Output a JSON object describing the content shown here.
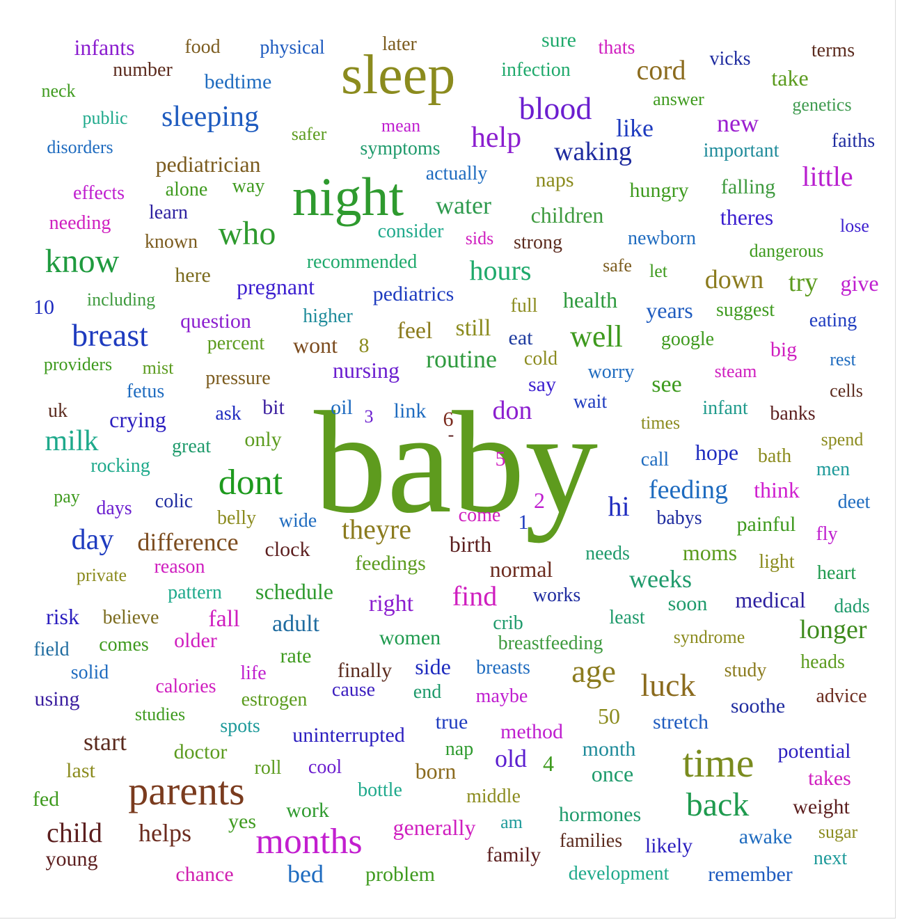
{
  "words": [
    {
      "text": "baby",
      "weight": 100,
      "color": "#5e9b1e"
    },
    {
      "text": "night",
      "weight": 50,
      "color": "#2e9a2e"
    },
    {
      "text": "sleep",
      "weight": 52,
      "color": "#8b8b1e"
    },
    {
      "text": "parents",
      "weight": 40,
      "color": "#7a3b1e"
    },
    {
      "text": "time",
      "weight": 40,
      "color": "#7a8b1e"
    },
    {
      "text": "months",
      "weight": 35,
      "color": "#c21ecf"
    },
    {
      "text": "dont",
      "weight": 35,
      "color": "#1e9a1e"
    },
    {
      "text": "back",
      "weight": 33,
      "color": "#1e9a4e"
    },
    {
      "text": "know",
      "weight": 33,
      "color": "#1e9a3e"
    },
    {
      "text": "who",
      "weight": 33,
      "color": "#2e9a2e"
    },
    {
      "text": "age",
      "weight": 32,
      "color": "#8b7b1e"
    },
    {
      "text": "luck",
      "weight": 32,
      "color": "#8b6b1e"
    },
    {
      "text": "breast",
      "weight": 32,
      "color": "#1e3bbf"
    },
    {
      "text": "blood",
      "weight": 31,
      "color": "#6b1ecf"
    },
    {
      "text": "well",
      "weight": 31,
      "color": "#3e9a1e"
    },
    {
      "text": "milk",
      "weight": 29,
      "color": "#1ea98b"
    },
    {
      "text": "child",
      "weight": 29,
      "color": "#5b1e1e"
    },
    {
      "text": "day",
      "weight": 29,
      "color": "#1e3bbf"
    },
    {
      "text": "help",
      "weight": 29,
      "color": "#8b1ecf"
    },
    {
      "text": "sleeping",
      "weight": 28,
      "color": "#1e5bbf"
    },
    {
      "text": "theyre",
      "weight": 27,
      "color": "#8b7b1e"
    },
    {
      "text": "hi",
      "weight": 27,
      "color": "#1e2bbf"
    },
    {
      "text": "hours",
      "weight": 27,
      "color": "#1ea96b"
    },
    {
      "text": "cord",
      "weight": 27,
      "color": "#8b6b1e"
    },
    {
      "text": "difference",
      "weight": 25,
      "color": "#7b4b1e"
    },
    {
      "text": "longer",
      "weight": 25,
      "color": "#3e8b1e"
    },
    {
      "text": "feeding",
      "weight": 25,
      "color": "#1e6bbf"
    },
    {
      "text": "waking",
      "weight": 25,
      "color": "#1e2b9f"
    },
    {
      "text": "little",
      "weight": 25,
      "color": "#b81ecf"
    },
    {
      "text": "down",
      "weight": 25,
      "color": "#8b7b1e"
    },
    {
      "text": "try",
      "weight": 25,
      "color": "#5b9b1e"
    },
    {
      "text": "routine",
      "weight": 24,
      "color": "#2e9a3e"
    },
    {
      "text": "helps",
      "weight": 24,
      "color": "#6b2b1e"
    },
    {
      "text": "water",
      "weight": 24,
      "color": "#2e9a4e"
    },
    {
      "text": "find",
      "weight": 24,
      "color": "#cf1ebf"
    },
    {
      "text": "don",
      "weight": 24,
      "color": "#8b1ecf"
    },
    {
      "text": "like",
      "weight": 23,
      "color": "#1e3bbf"
    },
    {
      "text": "bed",
      "weight": 23,
      "color": "#1e6bbf"
    },
    {
      "text": "weeks",
      "weight": 23,
      "color": "#1e9a6b"
    },
    {
      "text": "old",
      "weight": 23,
      "color": "#5b1ecf"
    },
    {
      "text": "start",
      "weight": 23,
      "color": "#5b2b1e"
    },
    {
      "text": "new",
      "weight": 23,
      "color": "#9b1ecf"
    },
    {
      "text": "pregnant",
      "weight": 21,
      "color": "#3b1ecf"
    },
    {
      "text": "pediatrician",
      "weight": 21,
      "color": "#7b5b1e"
    },
    {
      "text": "children",
      "weight": 21,
      "color": "#3e9a3e"
    },
    {
      "text": "years",
      "weight": 21,
      "color": "#1e5bbf"
    },
    {
      "text": "feel",
      "weight": 21,
      "color": "#8b7b1e"
    },
    {
      "text": "still",
      "weight": 21,
      "color": "#8b8b1e"
    },
    {
      "text": "health",
      "weight": 21,
      "color": "#2e9a3e"
    },
    {
      "text": "see",
      "weight": 21,
      "color": "#3e9a1e"
    },
    {
      "text": "give",
      "weight": 21,
      "color": "#bf1ecf"
    },
    {
      "text": "moms",
      "weight": 21,
      "color": "#5b9b1e"
    },
    {
      "text": "medical",
      "weight": 21,
      "color": "#2b1e9f"
    },
    {
      "text": "infants",
      "weight": 21,
      "color": "#8b1ecf"
    },
    {
      "text": "hope",
      "weight": 21,
      "color": "#1e2bbf"
    },
    {
      "text": "think",
      "weight": 21,
      "color": "#cf1ecf"
    },
    {
      "text": "schedule",
      "weight": 21,
      "color": "#2e9a2e"
    },
    {
      "text": "normal",
      "weight": 21,
      "color": "#6b2b1e"
    },
    {
      "text": "adult",
      "weight": 21,
      "color": "#1e6b9f"
    },
    {
      "text": "right",
      "weight": 21,
      "color": "#8b1ecf"
    },
    {
      "text": "fall",
      "weight": 21,
      "color": "#cf1ebf"
    },
    {
      "text": "crying",
      "weight": 21,
      "color": "#2b1ebf"
    },
    {
      "text": "soon",
      "weight": 20,
      "color": "#1e9a6b"
    },
    {
      "text": "women",
      "weight": 20,
      "color": "#1e9a4e"
    },
    {
      "text": "side",
      "weight": 20,
      "color": "#1e2bbf"
    },
    {
      "text": "finally",
      "weight": 20,
      "color": "#5b2b1e"
    },
    {
      "text": "young",
      "weight": 20,
      "color": "#5b1e1e"
    },
    {
      "text": "hormones",
      "weight": 20,
      "color": "#1e9a6b"
    },
    {
      "text": "potential",
      "weight": 20,
      "color": "#2b1ebf"
    },
    {
      "text": "awake",
      "weight": 20,
      "color": "#1e6bbf"
    },
    {
      "text": "likely",
      "weight": 20,
      "color": "#2b1ebf"
    },
    {
      "text": "family",
      "weight": 20,
      "color": "#5b1e1e"
    },
    {
      "text": "generally",
      "weight": 20,
      "color": "#cf1ebf"
    },
    {
      "text": "problem",
      "weight": 19,
      "color": "#3e9a1e"
    },
    {
      "text": "chance",
      "weight": 19,
      "color": "#cf1eaf"
    },
    {
      "text": "remember",
      "weight": 19,
      "color": "#1e5bbf"
    },
    {
      "text": "development",
      "weight": 19,
      "color": "#1ea98b"
    },
    {
      "text": "next",
      "weight": 19,
      "color": "#1e9a9a"
    },
    {
      "text": "sugar",
      "weight": 18,
      "color": "#8b8b1e"
    },
    {
      "text": "weight",
      "weight": 19,
      "color": "#5b1e1e"
    },
    {
      "text": "takes",
      "weight": 19,
      "color": "#cf1ebf"
    },
    {
      "text": "families",
      "weight": 18,
      "color": "#5b2b1e"
    },
    {
      "text": "middle",
      "weight": 18,
      "color": "#8b8b1e"
    },
    {
      "text": "work",
      "weight": 19,
      "color": "#2e9a2e"
    },
    {
      "text": "yes",
      "weight": 19,
      "color": "#3e9a1e"
    },
    {
      "text": "am",
      "weight": 18,
      "color": "#1e9a9a"
    },
    {
      "text": "bottle",
      "weight": 18,
      "color": "#1ea98b"
    },
    {
      "text": "born",
      "weight": 20,
      "color": "#8b6b1e"
    },
    {
      "text": "once",
      "weight": 20,
      "color": "#1e9a6b"
    },
    {
      "text": "month",
      "weight": 20,
      "color": "#1e8b9a"
    },
    {
      "text": "4",
      "weight": 20,
      "color": "#3e9a1e"
    },
    {
      "text": "nap",
      "weight": 18,
      "color": "#2e9a2e"
    },
    {
      "text": "true",
      "weight": 19,
      "color": "#1e3bbf"
    },
    {
      "text": "method",
      "weight": 19,
      "color": "#bf1ecf"
    },
    {
      "text": "stretch",
      "weight": 19,
      "color": "#1e5bbf"
    },
    {
      "text": "soothe",
      "weight": 19,
      "color": "#1e2b9f"
    },
    {
      "text": "advice",
      "weight": 18,
      "color": "#6b2b1e"
    },
    {
      "text": "heads",
      "weight": 18,
      "color": "#5b9b1e"
    },
    {
      "text": "study",
      "weight": 18,
      "color": "#8b7b1e"
    },
    {
      "text": "50",
      "weight": 21,
      "color": "#8b8b1e"
    },
    {
      "text": "maybe",
      "weight": 18,
      "color": "#bf1ecf"
    },
    {
      "text": "end",
      "weight": 18,
      "color": "#1e9a6b"
    },
    {
      "text": "cause",
      "weight": 18,
      "color": "#3b1ebf"
    },
    {
      "text": "breasts",
      "weight": 18,
      "color": "#1e6bbf"
    },
    {
      "text": "uninterrupted",
      "weight": 19,
      "color": "#2b1ebf"
    },
    {
      "text": "cool",
      "weight": 18,
      "color": "#6b1ecf"
    },
    {
      "text": "roll",
      "weight": 18,
      "color": "#5b9b1e"
    },
    {
      "text": "doctor",
      "weight": 19,
      "color": "#5b9b1e"
    },
    {
      "text": "last",
      "weight": 18,
      "color": "#8b8b1e"
    },
    {
      "text": "fed",
      "weight": 18,
      "color": "#3e9a1e"
    },
    {
      "text": "spots",
      "weight": 18,
      "color": "#1e9a9a"
    },
    {
      "text": "studies",
      "weight": 17,
      "color": "#3e9a1e"
    },
    {
      "text": "estrogen",
      "weight": 18,
      "color": "#5b9b1e"
    },
    {
      "text": "calories",
      "weight": 18,
      "color": "#cf1ebf"
    },
    {
      "text": "life",
      "weight": 18,
      "color": "#bf1ecf"
    },
    {
      "text": "rate",
      "weight": 18,
      "color": "#3e9a1e"
    },
    {
      "text": "using",
      "weight": 18,
      "color": "#3b1e9f"
    },
    {
      "text": "solid",
      "weight": 18,
      "color": "#1e6bbf"
    },
    {
      "text": "field",
      "weight": 18,
      "color": "#1e6b9f"
    },
    {
      "text": "comes",
      "weight": 18,
      "color": "#3e9a1e"
    },
    {
      "text": "older",
      "weight": 18,
      "color": "#cf1ebf"
    },
    {
      "text": "risk",
      "weight": 19,
      "color": "#2b1ebf"
    },
    {
      "text": "believe",
      "weight": 18,
      "color": "#7b6b1e"
    },
    {
      "text": "pattern",
      "weight": 18,
      "color": "#1ea98b"
    },
    {
      "text": "private",
      "weight": 17,
      "color": "#8b8b1e"
    },
    {
      "text": "reason",
      "weight": 18,
      "color": "#cf1ebf"
    },
    {
      "text": "clock",
      "weight": 18,
      "color": "#5b1e1e"
    },
    {
      "text": "feedings",
      "weight": 19,
      "color": "#5b9b1e"
    },
    {
      "text": "birth",
      "weight": 19,
      "color": "#5b1e1e"
    },
    {
      "text": "works",
      "weight": 18,
      "color": "#1e2b9f"
    },
    {
      "text": "crib",
      "weight": 18,
      "color": "#1e9a6b"
    },
    {
      "text": "breastfeeding",
      "weight": 18,
      "color": "#3e9a3e"
    },
    {
      "text": "least",
      "weight": 18,
      "color": "#1e9a6b"
    },
    {
      "text": "syndrome",
      "weight": 17,
      "color": "#8b8b1e"
    },
    {
      "text": "needs",
      "weight": 18,
      "color": "#1e9a6b"
    },
    {
      "text": "light",
      "weight": 18,
      "color": "#8b8b1e"
    },
    {
      "text": "heart",
      "weight": 18,
      "color": "#1e9a4e"
    },
    {
      "text": "dads",
      "weight": 18,
      "color": "#1e9a6b"
    },
    {
      "text": "fly",
      "weight": 18,
      "color": "#bf1ecf"
    },
    {
      "text": "painful",
      "weight": 18,
      "color": "#3e9a1e"
    },
    {
      "text": "babys",
      "weight": 18,
      "color": "#1e2b9f"
    },
    {
      "text": "deet",
      "weight": 18,
      "color": "#1e6bbf"
    },
    {
      "text": "men",
      "weight": 18,
      "color": "#1e9a9a"
    },
    {
      "text": "bath",
      "weight": 18,
      "color": "#8b8b1e"
    },
    {
      "text": "spend",
      "weight": 17,
      "color": "#8b8b1e"
    },
    {
      "text": "call",
      "weight": 18,
      "color": "#1e6bbf"
    },
    {
      "text": "times",
      "weight": 18,
      "color": "#8b8b1e"
    },
    {
      "text": "infant",
      "weight": 18,
      "color": "#1e9a8b"
    },
    {
      "text": "banks",
      "weight": 18,
      "color": "#5b1e1e"
    },
    {
      "text": "cells",
      "weight": 17,
      "color": "#5b2b1e"
    },
    {
      "text": "steam",
      "weight": 17,
      "color": "#cf1ebf"
    },
    {
      "text": "rest",
      "weight": 17,
      "color": "#1e6bbf"
    },
    {
      "text": "big",
      "weight": 18,
      "color": "#cf1ebf"
    },
    {
      "text": "google",
      "weight": 18,
      "color": "#3e9a1e"
    },
    {
      "text": "eating",
      "weight": 18,
      "color": "#1e3bbf"
    },
    {
      "text": "suggest",
      "weight": 18,
      "color": "#3e9a1e"
    },
    {
      "text": "wait",
      "weight": 18,
      "color": "#1e3bbf"
    },
    {
      "text": "worry",
      "weight": 18,
      "color": "#1e6bbf"
    },
    {
      "text": "say",
      "weight": 18,
      "color": "#3b1ecf"
    },
    {
      "text": "cold",
      "weight": 17,
      "color": "#8b8b1e"
    },
    {
      "text": "eat",
      "weight": 18,
      "color": "#1e3b9f"
    },
    {
      "text": "full",
      "weight": 17,
      "color": "#8b8b1e"
    },
    {
      "text": "safe",
      "weight": 17,
      "color": "#7b5b1e"
    },
    {
      "text": "let",
      "weight": 17,
      "color": "#3e9a1e"
    },
    {
      "text": "dangerous",
      "weight": 17,
      "color": "#3e9a1e"
    },
    {
      "text": "lose",
      "weight": 17,
      "color": "#3b1ecf"
    },
    {
      "text": "newborn",
      "weight": 18,
      "color": "#1e6bbf"
    },
    {
      "text": "theres",
      "weight": 19,
      "color": "#3b1ecf"
    },
    {
      "text": "falling",
      "weight": 19,
      "color": "#3e9a3e"
    },
    {
      "text": "hungry",
      "weight": 18,
      "color": "#3e9a1e"
    },
    {
      "text": "strong",
      "weight": 18,
      "color": "#5b2b1e"
    },
    {
      "text": "naps",
      "weight": 18,
      "color": "#8b8b1e"
    },
    {
      "text": "sids",
      "weight": 17,
      "color": "#cf1ebf"
    },
    {
      "text": "consider",
      "weight": 18,
      "color": "#1ea98b"
    },
    {
      "text": "recommended",
      "weight": 18,
      "color": "#1ea96b"
    },
    {
      "text": "pediatrics",
      "weight": 19,
      "color": "#1e3bbf"
    },
    {
      "text": "higher",
      "weight": 18,
      "color": "#1e8b9a"
    },
    {
      "text": "wont",
      "weight": 19,
      "color": "#7b4b1e"
    },
    {
      "text": "8",
      "weight": 19,
      "color": "#8b8b1e"
    },
    {
      "text": "nursing",
      "weight": 19,
      "color": "#6b1ecf"
    },
    {
      "text": "percent",
      "weight": 18,
      "color": "#5b9b1e"
    },
    {
      "text": "question",
      "weight": 19,
      "color": "#8b1ecf"
    },
    {
      "text": "here",
      "weight": 18,
      "color": "#7b6b1e"
    },
    {
      "text": "including",
      "weight": 17,
      "color": "#3e9a3e"
    },
    {
      "text": "10",
      "weight": 18,
      "color": "#1e2bbf"
    },
    {
      "text": "providers",
      "weight": 17,
      "color": "#3e9a1e"
    },
    {
      "text": "mist",
      "weight": 17,
      "color": "#5b9b1e"
    },
    {
      "text": "fetus",
      "weight": 18,
      "color": "#1e6bbf"
    },
    {
      "text": "pressure",
      "weight": 18,
      "color": "#7b5b1e"
    },
    {
      "text": "uk",
      "weight": 18,
      "color": "#5b2b1e"
    },
    {
      "text": "ask",
      "weight": 18,
      "color": "#1e2bbf"
    },
    {
      "text": "bit",
      "weight": 18,
      "color": "#3b1e9f"
    },
    {
      "text": "oil",
      "weight": 18,
      "color": "#1e6bbf"
    },
    {
      "text": "3",
      "weight": 17,
      "color": "#6b1ecf"
    },
    {
      "text": "link",
      "weight": 18,
      "color": "#1e6bbf"
    },
    {
      "text": "6",
      "weight": 18,
      "color": "#7b2b1e"
    },
    {
      "text": "-",
      "weight": 17,
      "color": "#5b1e1e"
    },
    {
      "text": "only",
      "weight": 19,
      "color": "#5b9b1e"
    },
    {
      "text": "great",
      "weight": 18,
      "color": "#1e9a6b"
    },
    {
      "text": "rocking",
      "weight": 18,
      "color": "#1ea98b"
    },
    {
      "text": "5",
      "weight": 18,
      "color": "#cf1ebf"
    },
    {
      "text": "2",
      "weight": 19,
      "color": "#bf1ecf"
    },
    {
      "text": "1",
      "weight": 18,
      "color": "#1e3bbf"
    },
    {
      "text": "come",
      "weight": 18,
      "color": "#cf1ebf"
    },
    {
      "text": "wide",
      "weight": 18,
      "color": "#1e6bbf"
    },
    {
      "text": "belly",
      "weight": 18,
      "color": "#8b8b1e"
    },
    {
      "text": "colic",
      "weight": 18,
      "color": "#1e2b9f"
    },
    {
      "text": "days",
      "weight": 18,
      "color": "#6b1ecf"
    },
    {
      "text": "pay",
      "weight": 17,
      "color": "#3e9a1e"
    },
    {
      "text": "needing",
      "weight": 18,
      "color": "#cf1ebf"
    },
    {
      "text": "known",
      "weight": 18,
      "color": "#7b5b1e"
    },
    {
      "text": "learn",
      "weight": 18,
      "color": "#2b1e9f"
    },
    {
      "text": "effects",
      "weight": 18,
      "color": "#bf1ecf"
    },
    {
      "text": "alone",
      "weight": 18,
      "color": "#3e9a1e"
    },
    {
      "text": "way",
      "weight": 18,
      "color": "#3e9a1e"
    },
    {
      "text": "actually",
      "weight": 18,
      "color": "#1e6bbf"
    },
    {
      "text": "symptoms",
      "weight": 18,
      "color": "#1e9a6b"
    },
    {
      "text": "mean",
      "weight": 17,
      "color": "#bf1ecf"
    },
    {
      "text": "safer",
      "weight": 17,
      "color": "#5b9b1e"
    },
    {
      "text": "disorders",
      "weight": 17,
      "color": "#1e6bbf"
    },
    {
      "text": "public",
      "weight": 17,
      "color": "#1ea98b"
    },
    {
      "text": "neck",
      "weight": 17,
      "color": "#3e9a1e"
    },
    {
      "text": "bedtime",
      "weight": 19,
      "color": "#1e6bbf"
    },
    {
      "text": "number",
      "weight": 18,
      "color": "#5b2b1e"
    },
    {
      "text": "food",
      "weight": 18,
      "color": "#7b5b1e"
    },
    {
      "text": "physical",
      "weight": 18,
      "color": "#1e5bbf"
    },
    {
      "text": "later",
      "weight": 18,
      "color": "#7b5b1e"
    },
    {
      "text": "sure",
      "weight": 18,
      "color": "#1ea96b"
    },
    {
      "text": "thats",
      "weight": 18,
      "color": "#cf1ebf"
    },
    {
      "text": "infection",
      "weight": 18,
      "color": "#1ea96b"
    },
    {
      "text": "vicks",
      "weight": 18,
      "color": "#1e2b9f"
    },
    {
      "text": "terms",
      "weight": 18,
      "color": "#5b2b1e"
    },
    {
      "text": "take",
      "weight": 19,
      "color": "#5b9b1e"
    },
    {
      "text": "answer",
      "weight": 17,
      "color": "#3e9a1e"
    },
    {
      "text": "genetics",
      "weight": 17,
      "color": "#3e9a4e"
    },
    {
      "text": "important",
      "weight": 18,
      "color": "#1e8b9a"
    },
    {
      "text": "faiths",
      "weight": 18,
      "color": "#1e2b9f"
    }
  ]
}
